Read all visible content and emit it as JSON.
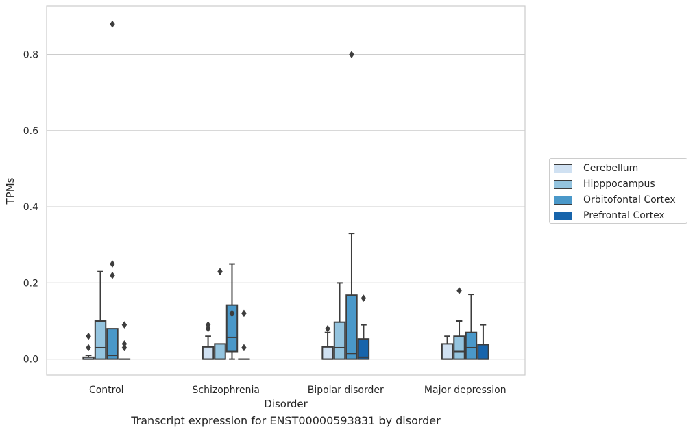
{
  "chart_data": {
    "type": "box",
    "caption": "Transcript expression for ENST00000593831 by disorder",
    "xlabel": "Disorder",
    "ylabel": "TPMs",
    "ylim": [
      -0.042,
      0.927
    ],
    "yticks": [
      0.0,
      0.2,
      0.4,
      0.6,
      0.8
    ],
    "ytick_labels": [
      "0.0",
      "0.2",
      "0.4",
      "0.6",
      "0.8"
    ],
    "grid": "horizontal",
    "legend_position": "right",
    "categories": [
      "Control",
      "Schizophrenia",
      "Bipolar disorder",
      "Major depression"
    ],
    "series": [
      {
        "name": "Cerebellum",
        "color": "#d0e1f2",
        "boxes": [
          {
            "whisker_low": 0.0,
            "q1": 0.0,
            "median": 0.0,
            "q3": 0.005,
            "whisker_high": 0.01,
            "outliers": [
              0.03,
              0.06
            ]
          },
          {
            "whisker_low": 0.0,
            "q1": 0.0,
            "median": 0.0,
            "q3": 0.032,
            "whisker_high": 0.06,
            "outliers": [
              0.08,
              0.09
            ]
          },
          {
            "whisker_low": 0.0,
            "q1": 0.0,
            "median": 0.0,
            "q3": 0.032,
            "whisker_high": 0.07,
            "outliers": [
              0.08
            ]
          },
          {
            "whisker_low": 0.0,
            "q1": 0.0,
            "median": 0.0,
            "q3": 0.04,
            "whisker_high": 0.06,
            "outliers": []
          }
        ]
      },
      {
        "name": "Hipppocampus",
        "color": "#94c4df",
        "boxes": [
          {
            "whisker_low": 0.0,
            "q1": 0.0,
            "median": 0.03,
            "q3": 0.1,
            "whisker_high": 0.23,
            "outliers": []
          },
          {
            "whisker_low": 0.0,
            "q1": 0.0,
            "median": 0.0,
            "q3": 0.04,
            "whisker_high": 0.04,
            "outliers": [
              0.23
            ]
          },
          {
            "whisker_low": 0.0,
            "q1": 0.0,
            "median": 0.03,
            "q3": 0.097,
            "whisker_high": 0.2,
            "outliers": []
          },
          {
            "whisker_low": 0.0,
            "q1": 0.0,
            "median": 0.02,
            "q3": 0.06,
            "whisker_high": 0.1,
            "outliers": [
              0.18
            ]
          }
        ]
      },
      {
        "name": "Orbitofontal Cortex",
        "color": "#4a98c9",
        "boxes": [
          {
            "whisker_low": 0.0,
            "q1": 0.0,
            "median": 0.01,
            "q3": 0.08,
            "whisker_high": 0.08,
            "outliers": [
              0.22,
              0.25,
              0.88
            ]
          },
          {
            "whisker_low": 0.0,
            "q1": 0.02,
            "median": 0.057,
            "q3": 0.142,
            "whisker_high": 0.25,
            "outliers": [
              0.12
            ]
          },
          {
            "whisker_low": 0.0,
            "q1": 0.0,
            "median": 0.015,
            "q3": 0.168,
            "whisker_high": 0.33,
            "outliers": [
              0.8
            ]
          },
          {
            "whisker_low": 0.0,
            "q1": 0.0,
            "median": 0.03,
            "q3": 0.07,
            "whisker_high": 0.17,
            "outliers": []
          }
        ]
      },
      {
        "name": "Prefrontal Cortex",
        "color": "#1764ab",
        "boxes": [
          {
            "whisker_low": 0.0,
            "q1": 0.0,
            "median": 0.0,
            "q3": 0.0,
            "whisker_high": 0.0,
            "outliers": [
              0.03,
              0.04,
              0.09
            ]
          },
          {
            "whisker_low": 0.0,
            "q1": 0.0,
            "median": 0.0,
            "q3": 0.0,
            "whisker_high": 0.0,
            "outliers": [
              0.03,
              0.12
            ]
          },
          {
            "whisker_low": 0.0,
            "q1": 0.0,
            "median": 0.005,
            "q3": 0.053,
            "whisker_high": 0.09,
            "outliers": [
              0.16
            ]
          },
          {
            "whisker_low": 0.0,
            "q1": 0.0,
            "median": 0.0,
            "q3": 0.038,
            "whisker_high": 0.09,
            "outliers": []
          }
        ]
      }
    ]
  }
}
